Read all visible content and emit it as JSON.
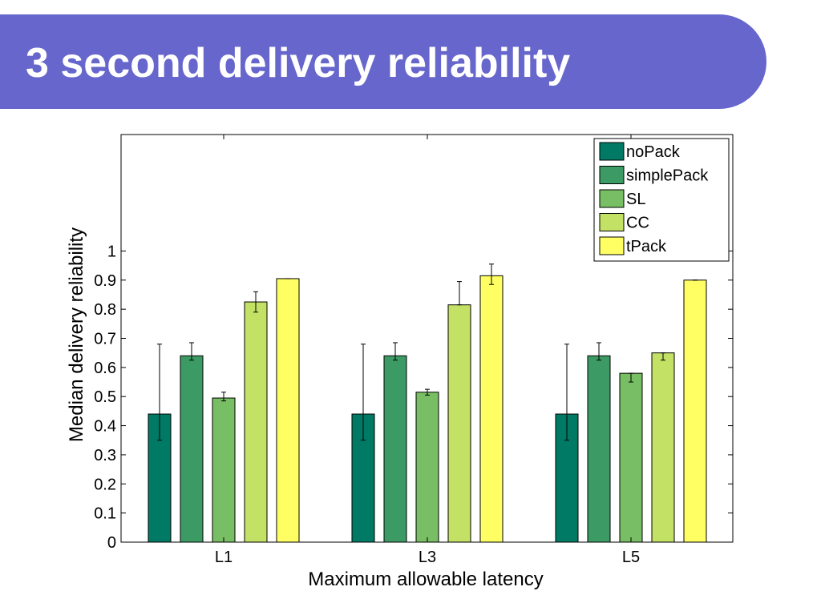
{
  "slide": {
    "title": "3 second delivery reliability",
    "banner_color": "#6666cc",
    "title_color": "#ffffff"
  },
  "chart_data": {
    "type": "bar",
    "xlabel": "Maximum allowable latency",
    "ylabel": "Median delivery reliability",
    "categories": [
      "L1",
      "L3",
      "L5"
    ],
    "ylim": [
      0,
      1.4
    ],
    "yticks": [
      0,
      0.1,
      0.2,
      0.3,
      0.4,
      0.5,
      0.6,
      0.7,
      0.8,
      0.9,
      1
    ],
    "ytick_labels": [
      "0",
      "0.1",
      "0.2",
      "0.3",
      "0.4",
      "0.5",
      "0.6",
      "0.7",
      "0.8",
      "0.9",
      "1"
    ],
    "grid": false,
    "legend_position": "top-right",
    "error_bars": true,
    "series": [
      {
        "name": "noPack",
        "color": "#007a64",
        "values": [
          0.44,
          0.44,
          0.44
        ],
        "err_low": [
          0.35,
          0.35,
          0.35
        ],
        "err_high": [
          0.68,
          0.68,
          0.68
        ]
      },
      {
        "name": "simplePack",
        "color": "#3c9b64",
        "values": [
          0.64,
          0.64,
          0.64
        ],
        "err_low": [
          0.625,
          0.625,
          0.625
        ],
        "err_high": [
          0.685,
          0.685,
          0.685
        ]
      },
      {
        "name": "SL",
        "color": "#78be64",
        "values": [
          0.495,
          0.515,
          0.58
        ],
        "err_low": [
          0.485,
          0.505,
          0.55
        ],
        "err_high": [
          0.515,
          0.525,
          0.58
        ]
      },
      {
        "name": "CC",
        "color": "#c3e164",
        "values": [
          0.825,
          0.815,
          0.65
        ],
        "err_low": [
          0.79,
          0.815,
          0.625
        ],
        "err_high": [
          0.86,
          0.895,
          0.65
        ]
      },
      {
        "name": "tPack",
        "color": "#ffff64",
        "values": [
          0.905,
          0.915,
          0.9
        ],
        "err_low": [
          0.905,
          0.885,
          0.9
        ],
        "err_high": [
          0.905,
          0.955,
          0.9
        ]
      }
    ]
  }
}
